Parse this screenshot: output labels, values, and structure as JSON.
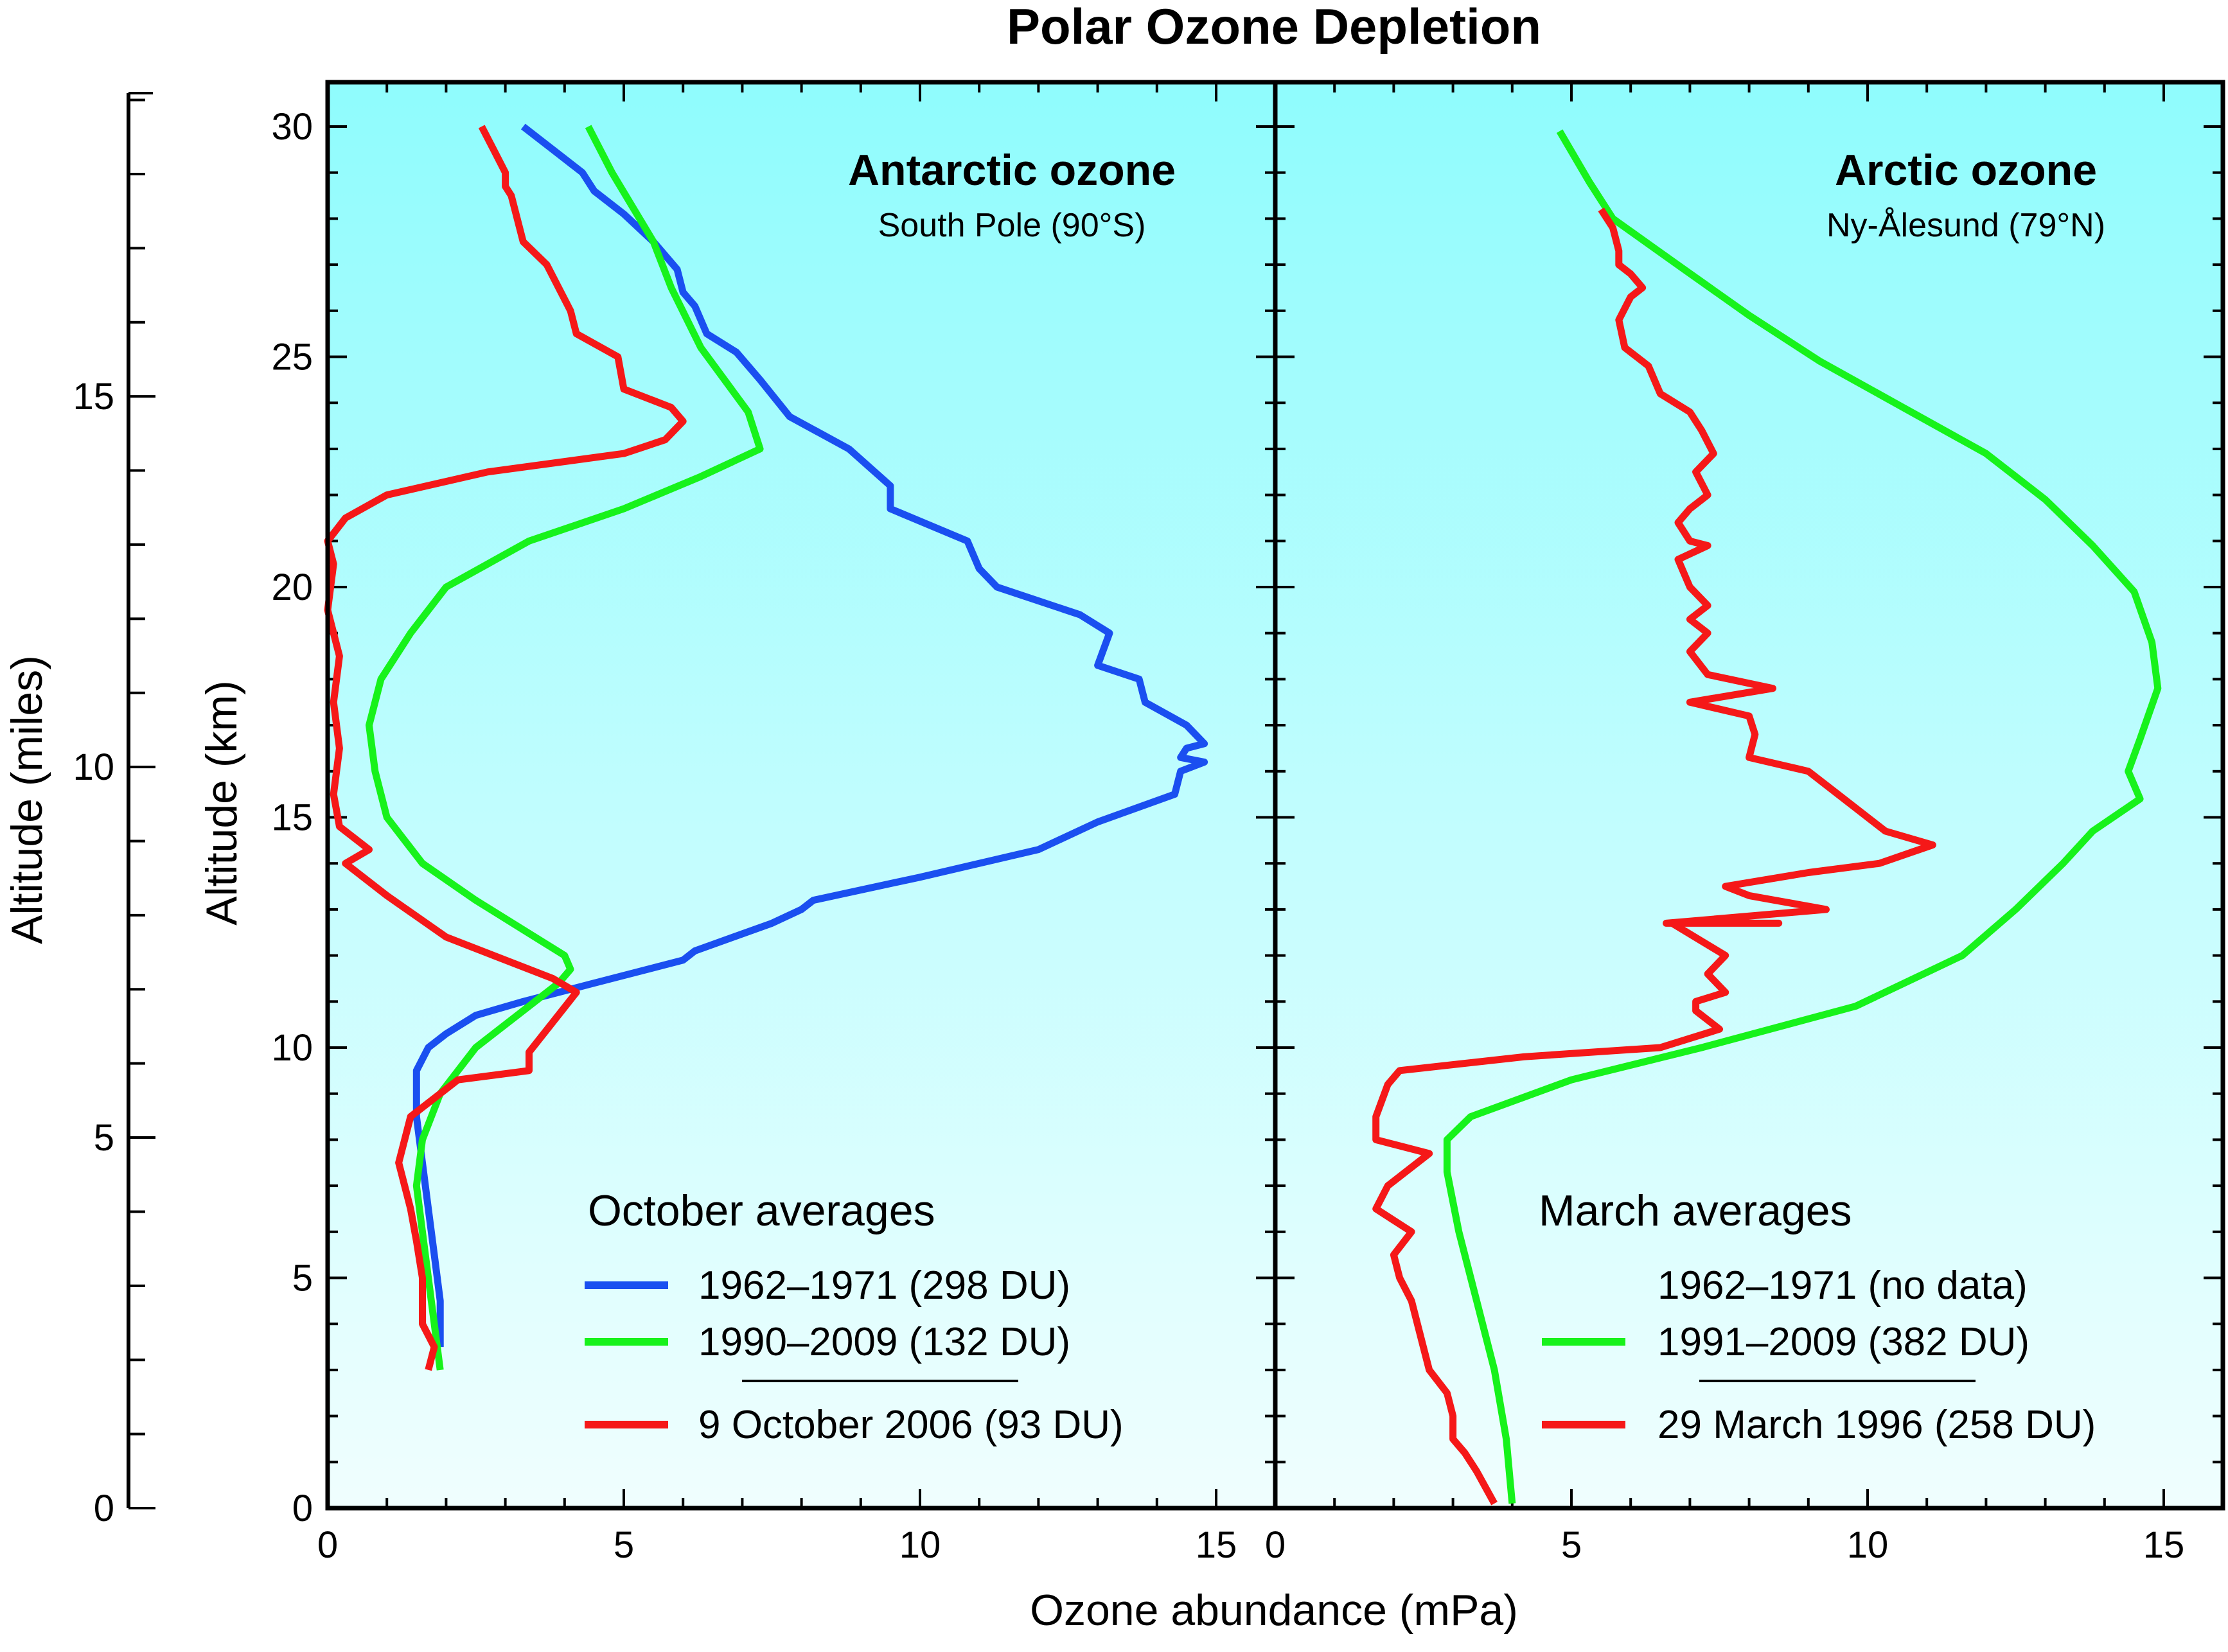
{
  "title": "Polar Ozone Depletion",
  "colors": {
    "background": "#ffffff",
    "plot_top": "#8ffcfd",
    "plot_bottom": "#f0fefe",
    "blue": "#1a4ff0",
    "green": "#17f21b",
    "red": "#f51818",
    "axis": "#000000"
  },
  "axes": {
    "xlabel": "Ozone abundance (mPa)",
    "ylabel_km": "Altitude (km)",
    "ylabel_miles": "Altitude (miles)",
    "x_ticks": [
      "0",
      "5",
      "10",
      "15"
    ],
    "y_km_ticks": [
      "0",
      "5",
      "10",
      "15",
      "20",
      "25",
      "30"
    ],
    "y_mile_ticks": [
      "0",
      "5",
      "10",
      "15"
    ]
  },
  "chart_data": [
    {
      "type": "line",
      "panel": "left",
      "title": "Antarctic ozone",
      "subtitle": "South Pole (90°S)",
      "xlabel": "Ozone abundance (mPa)",
      "ylabel": "Altitude (km)",
      "xlim": [
        0,
        16
      ],
      "ylim": [
        0,
        31
      ],
      "legend_title": "October averages",
      "series": [
        {
          "name": "1962–1971 (298 DU)",
          "color": "#1a4ff0",
          "x": [
            1.9,
            1.9,
            1.8,
            1.7,
            1.6,
            1.5,
            1.5,
            1.7,
            2.0,
            2.5,
            3.3,
            4.5,
            6.0,
            6.2,
            7.5,
            8.0,
            8.2,
            10.0,
            12.0,
            13.0,
            14.3,
            14.4,
            14.8,
            14.4,
            14.5,
            14.8,
            14.5,
            13.8,
            13.7,
            13.0,
            13.2,
            12.7,
            11.3,
            11.0,
            10.8,
            9.5,
            9.5,
            8.8,
            7.8,
            7.3,
            6.9,
            6.4,
            6.2,
            6.0,
            5.9,
            5.5,
            5.0,
            4.5,
            4.3,
            3.8,
            3.3
          ],
          "y": [
            3.5,
            4.5,
            5.5,
            6.5,
            7.5,
            8.5,
            9.5,
            10.0,
            10.3,
            10.7,
            11.0,
            11.4,
            11.9,
            12.1,
            12.7,
            13.0,
            13.2,
            13.7,
            14.3,
            14.9,
            15.5,
            16.0,
            16.2,
            16.3,
            16.5,
            16.6,
            17.0,
            17.5,
            18.0,
            18.3,
            19.0,
            19.4,
            20.0,
            20.4,
            21.0,
            21.7,
            22.2,
            23.0,
            23.7,
            24.5,
            25.1,
            25.5,
            26.1,
            26.4,
            26.9,
            27.5,
            28.1,
            28.6,
            29.0,
            29.5,
            30.0
          ]
        },
        {
          "name": "1990–2009 (132 DU)",
          "color": "#17f21b",
          "x": [
            1.9,
            1.8,
            1.7,
            1.6,
            1.5,
            1.6,
            1.9,
            2.5,
            3.3,
            3.9,
            4.1,
            4.0,
            3.5,
            2.5,
            1.6,
            1.0,
            0.8,
            0.7,
            0.9,
            1.4,
            2.0,
            3.4,
            5.0,
            6.3,
            7.3,
            7.1,
            6.3,
            5.8,
            5.5,
            4.8,
            4.4
          ],
          "y": [
            3.0,
            4.0,
            5.0,
            6.0,
            7.0,
            8.0,
            9.0,
            10.0,
            10.8,
            11.4,
            11.7,
            12.0,
            12.4,
            13.2,
            14.0,
            15.0,
            16.0,
            17.0,
            18.0,
            19.0,
            20.0,
            21.0,
            21.7,
            22.4,
            23.0,
            23.8,
            25.2,
            26.5,
            27.5,
            29.0,
            30.0
          ]
        },
        {
          "name": "9 October  2006 (93 DU)",
          "color": "#f51818",
          "x": [
            1.7,
            1.8,
            1.6,
            1.6,
            1.5,
            1.4,
            1.2,
            1.4,
            2.2,
            3.4,
            3.4,
            4.2,
            3.8,
            2.0,
            1.0,
            0.3,
            0.7,
            0.2,
            0.1,
            0.2,
            0.1,
            0.2,
            0.0,
            0.1,
            0.0,
            0.3,
            1.0,
            2.7,
            5.0,
            5.7,
            6.0,
            5.8,
            5.0,
            4.9,
            4.2,
            4.1,
            3.7,
            3.3,
            3.1,
            3.0,
            3.0,
            2.8,
            2.6
          ],
          "y": [
            3.0,
            3.5,
            4.0,
            5.0,
            5.8,
            6.5,
            7.5,
            8.5,
            9.3,
            9.5,
            9.9,
            11.2,
            11.5,
            12.4,
            13.3,
            14.0,
            14.3,
            14.8,
            15.5,
            16.5,
            17.5,
            18.5,
            19.5,
            20.5,
            21.0,
            21.5,
            22.0,
            22.5,
            22.9,
            23.2,
            23.6,
            23.9,
            24.3,
            25.0,
            25.5,
            26.0,
            27.0,
            27.5,
            28.5,
            28.7,
            29.0,
            29.5,
            30.0
          ]
        }
      ],
      "legend_separator_before_last": true
    },
    {
      "type": "line",
      "panel": "right",
      "title": "Arctic ozone",
      "subtitle": "Ny-Ålesund (79°N)",
      "xlabel": "Ozone abundance (mPa)",
      "ylabel": "Altitude (km)",
      "xlim": [
        0,
        16
      ],
      "ylim": [
        0,
        31
      ],
      "legend_title": "March averages",
      "series": [
        {
          "name": "1962–1971 (no data)",
          "color": "",
          "x": [],
          "y": []
        },
        {
          "name": "1991–2009 (382 DU)",
          "color": "#17f21b",
          "x": [
            4.0,
            3.9,
            3.7,
            3.4,
            3.1,
            2.9,
            2.9,
            3.3,
            5.0,
            7.2,
            9.8,
            11.6,
            12.5,
            13.3,
            13.8,
            14.6,
            14.4,
            14.6,
            14.9,
            14.8,
            14.5,
            13.8,
            13.0,
            12.0,
            10.6,
            9.2,
            8.0,
            6.9,
            5.7,
            5.3,
            4.8
          ],
          "y": [
            0.1,
            1.5,
            3.0,
            4.5,
            6.0,
            7.3,
            8.0,
            8.5,
            9.3,
            10.0,
            10.9,
            12.0,
            13.0,
            14.0,
            14.7,
            15.4,
            16.0,
            16.7,
            17.8,
            18.8,
            19.9,
            20.9,
            21.9,
            22.9,
            23.9,
            24.9,
            25.9,
            26.9,
            28.0,
            28.8,
            29.9
          ]
        },
        {
          "name": "29 March 1996 (258 DU)",
          "color": "#f51818",
          "x": [
            3.7,
            3.4,
            3.2,
            3.0,
            3.0,
            2.9,
            2.6,
            2.5,
            2.4,
            2.3,
            2.1,
            2.0,
            2.3,
            1.7,
            1.9,
            2.6,
            1.7,
            1.7,
            1.9,
            2.1,
            4.2,
            6.5,
            7.5,
            7.1,
            7.1,
            7.6,
            7.3,
            7.6,
            6.7,
            8.5,
            6.6,
            9.3,
            8.0,
            7.6,
            9.0,
            10.2,
            11.1,
            10.3,
            10.0,
            9.5,
            9.0,
            8.0,
            8.1,
            8.0,
            7.0,
            8.4,
            7.3,
            7.0,
            7.3,
            7.0,
            7.3,
            7.0,
            6.8,
            7.3,
            7.0,
            6.8,
            7.0,
            7.3,
            7.1,
            7.4,
            7.2,
            7.0,
            6.5,
            6.3,
            5.9,
            5.8,
            6.0,
            6.2,
            6.0,
            5.8,
            5.8,
            5.7,
            5.5
          ],
          "y": [
            0.1,
            0.8,
            1.2,
            1.5,
            2.0,
            2.5,
            3.0,
            3.5,
            4.0,
            4.5,
            5.0,
            5.5,
            6.0,
            6.5,
            7.0,
            7.7,
            8.0,
            8.5,
            9.2,
            9.5,
            9.8,
            10.0,
            10.4,
            10.8,
            11.0,
            11.2,
            11.6,
            12.0,
            12.7,
            12.7,
            12.7,
            13.0,
            13.3,
            13.5,
            13.8,
            14.0,
            14.4,
            14.7,
            15.0,
            15.5,
            16.0,
            16.3,
            16.8,
            17.2,
            17.5,
            17.8,
            18.1,
            18.6,
            19.0,
            19.3,
            19.6,
            20.0,
            20.6,
            20.9,
            21.0,
            21.4,
            21.7,
            22.0,
            22.5,
            22.9,
            23.4,
            23.8,
            24.2,
            24.8,
            25.2,
            25.8,
            26.3,
            26.5,
            26.8,
            27.0,
            27.3,
            27.8,
            28.2
          ]
        }
      ],
      "legend_separator_before_last": true
    }
  ]
}
